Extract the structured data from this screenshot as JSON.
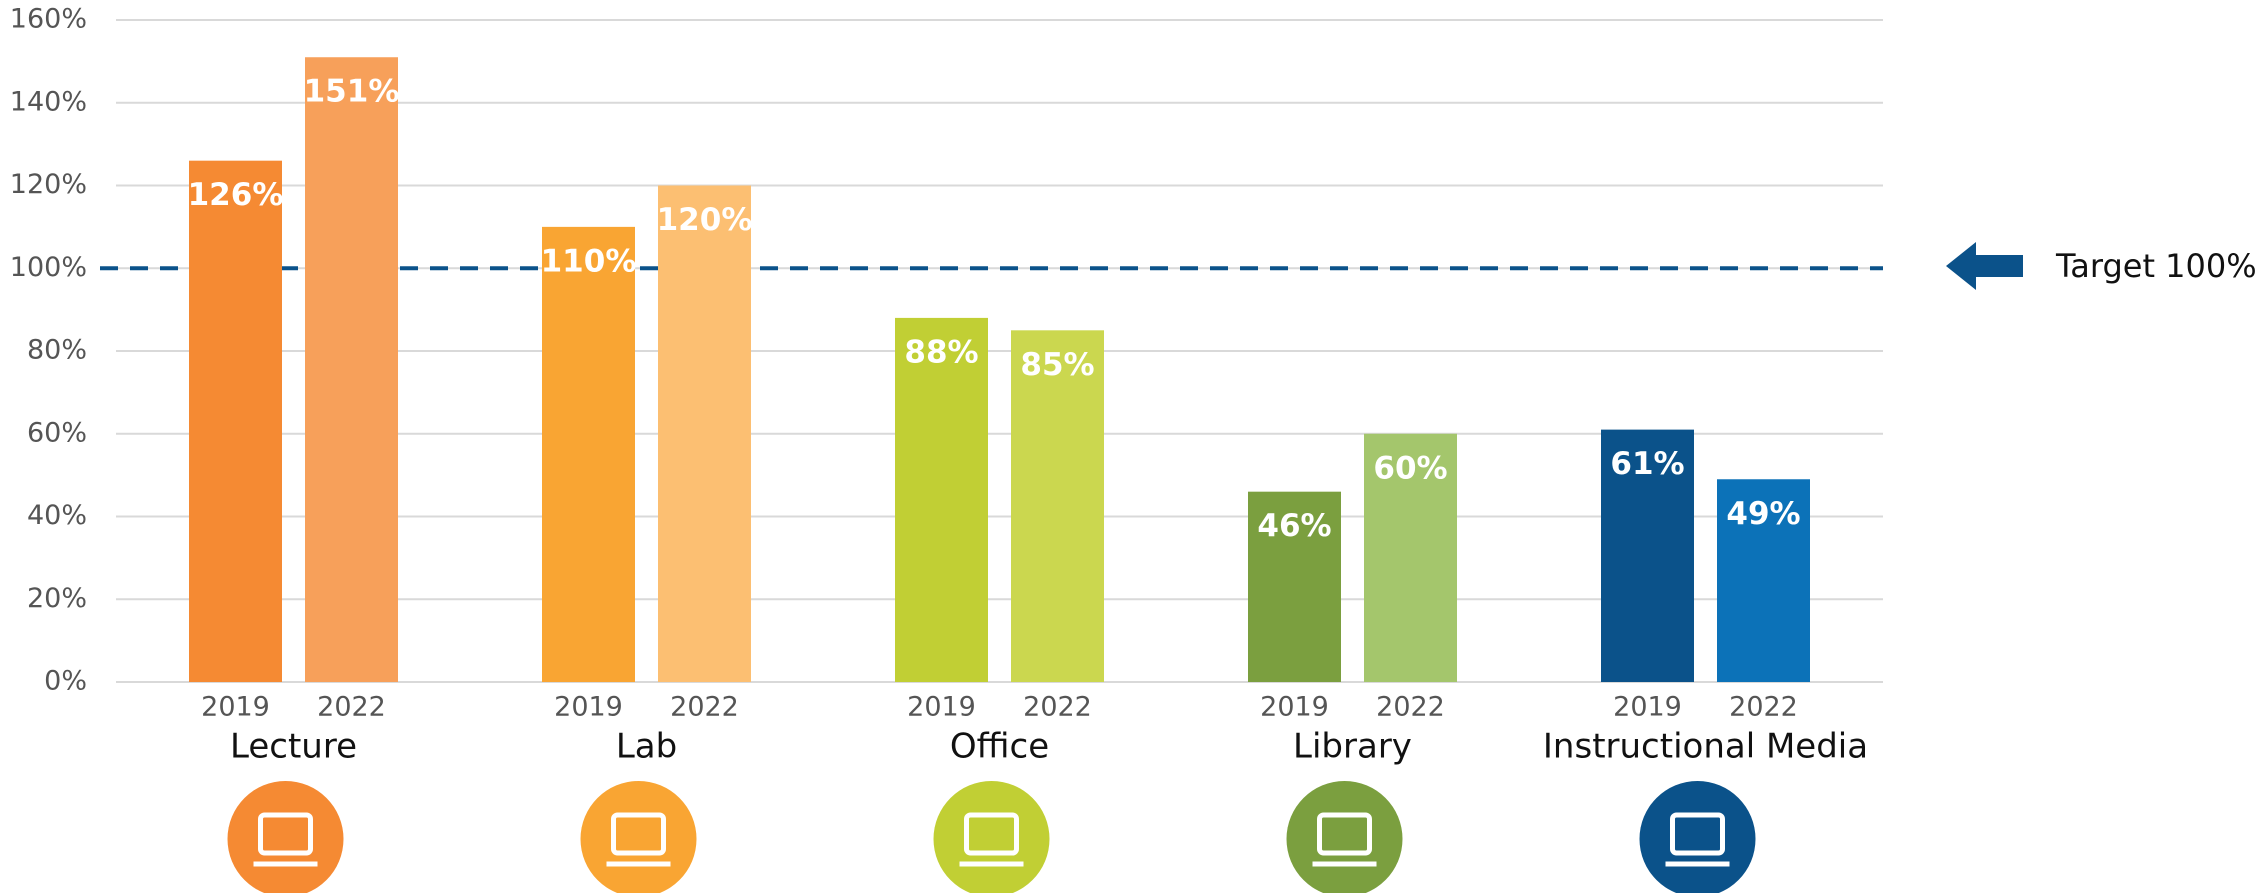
{
  "chart_data": {
    "type": "bar",
    "categories": [
      "Lecture",
      "Lab",
      "Office",
      "Library",
      "Instructional Media"
    ],
    "series": [
      {
        "name": "2019",
        "colors": [
          "#f58a33",
          "#f9a533",
          "#c1cf34",
          "#7b9f3f",
          "#0b528a"
        ],
        "values": [
          126,
          110,
          88,
          46,
          61
        ],
        "value_labels": [
          "126%",
          "110%",
          "88%",
          "46%",
          "61%"
        ]
      },
      {
        "name": "2022",
        "colors": [
          "#f7a05a",
          "#fcbf72",
          "#cbd74f",
          "#a4c66c",
          "#0c72b8"
        ],
        "values": [
          151,
          120,
          85,
          60,
          49
        ],
        "value_labels": [
          "151%",
          "120%",
          "85%",
          "60%",
          "49%"
        ]
      }
    ],
    "ylim": [
      0,
      160
    ],
    "yticks": [
      {
        "value": 0,
        "label": "0%"
      },
      {
        "value": 20,
        "label": "20%"
      },
      {
        "value": 40,
        "label": "40%"
      },
      {
        "value": 60,
        "label": "60%"
      },
      {
        "value": 80,
        "label": "80%"
      },
      {
        "value": 100,
        "label": "100%"
      },
      {
        "value": 120,
        "label": "120%"
      },
      {
        "value": 140,
        "label": "140%"
      },
      {
        "value": 160,
        "label": "160%"
      }
    ],
    "grid": true,
    "target": {
      "value": 100,
      "label": "Target 100%",
      "color": "#0b528a"
    }
  }
}
